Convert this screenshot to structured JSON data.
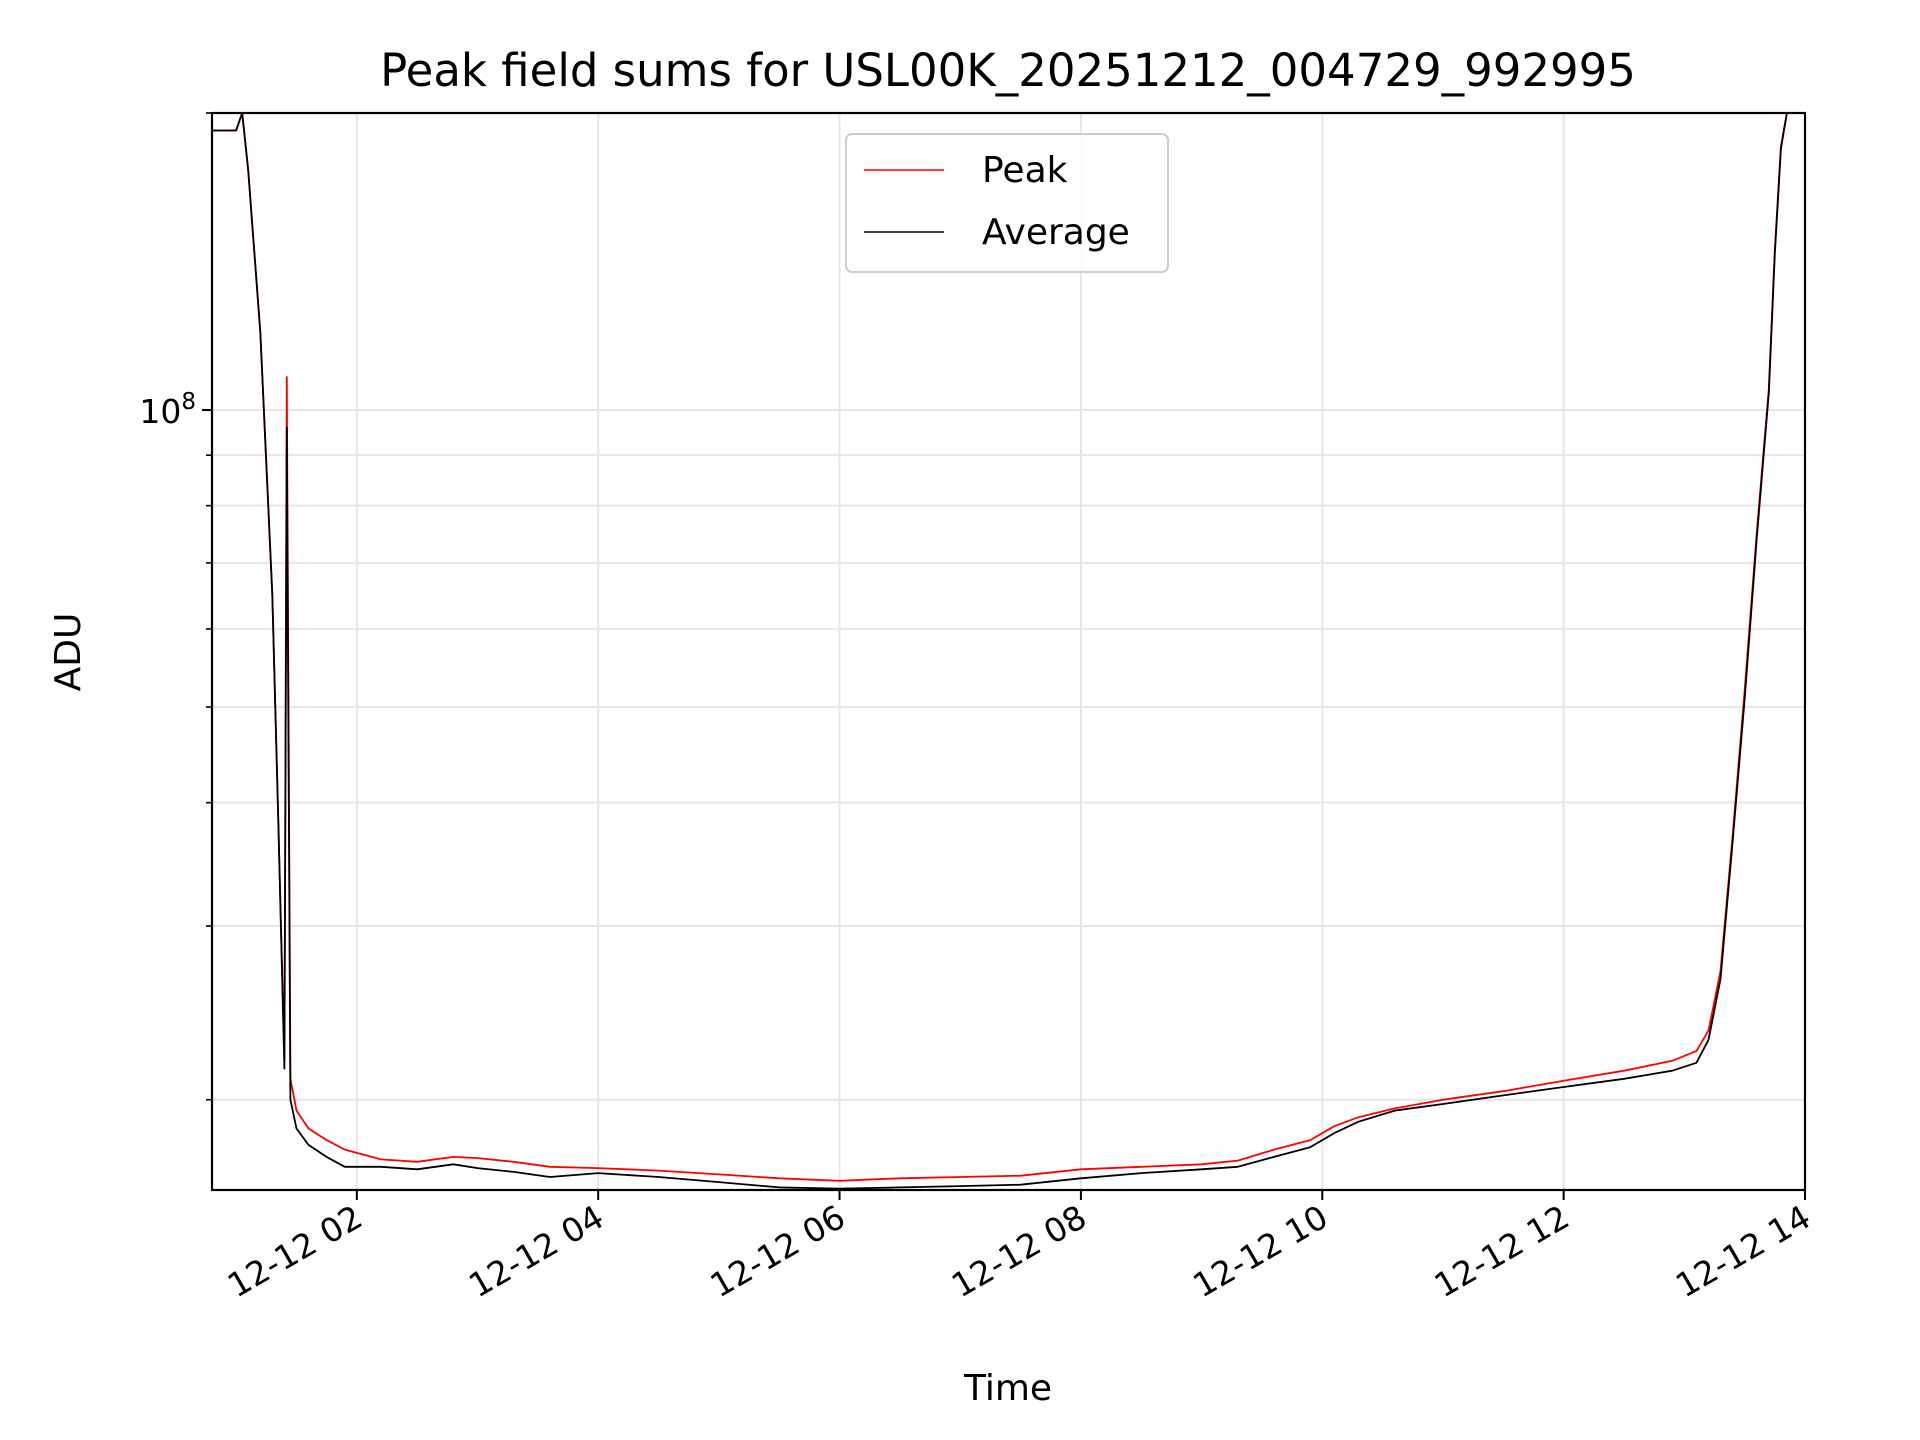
{
  "chart_data": {
    "type": "line",
    "title": "Peak field sums for USL00K_20251212_004729_992995",
    "xlabel": "Time",
    "ylabel": "ADU",
    "yscale": "log",
    "x_unit": "hours since 12-12 00:00",
    "xlim": [
      0.8,
      14.0
    ],
    "ylim": [
      16200000,
      200000000
    ],
    "x_ticks": [
      {
        "value": 2,
        "label": "12-12 02"
      },
      {
        "value": 4,
        "label": "12-12 04"
      },
      {
        "value": 6,
        "label": "12-12 06"
      },
      {
        "value": 8,
        "label": "12-12 08"
      },
      {
        "value": 10,
        "label": "12-12 10"
      },
      {
        "value": 12,
        "label": "12-12 12"
      },
      {
        "value": 14,
        "label": "12-12 14"
      }
    ],
    "y_major_ticks": [
      {
        "value": 100000000,
        "base": "10",
        "exp": "8"
      }
    ],
    "y_minor_ticks": [
      20000000,
      30000000,
      40000000,
      50000000,
      60000000,
      70000000,
      80000000,
      90000000,
      200000000
    ],
    "legend": {
      "location": "upper center",
      "entries": [
        {
          "name": "Peak",
          "color": "#ff0000"
        },
        {
          "name": "Average",
          "color": "#000000"
        }
      ]
    },
    "series": [
      {
        "name": "Peak",
        "color": "#ff0000",
        "x": [
          0.8,
          0.95,
          1.0,
          1.05,
          1.1,
          1.2,
          1.3,
          1.35,
          1.4,
          1.42,
          1.45,
          1.5,
          1.6,
          1.75,
          1.9,
          2.2,
          2.5,
          2.8,
          3.0,
          3.3,
          3.6,
          4.0,
          4.5,
          5.0,
          5.5,
          6.0,
          6.5,
          7.0,
          7.5,
          8.0,
          8.5,
          9.0,
          9.3,
          9.6,
          9.9,
          10.1,
          10.3,
          10.6,
          11.0,
          11.5,
          12.0,
          12.5,
          12.9,
          13.1,
          13.2,
          13.3,
          13.4,
          13.5,
          13.6,
          13.7,
          13.75,
          13.8,
          13.85
        ],
        "y": [
          192000000,
          192000000,
          192000000,
          200000000,
          175000000,
          120000000,
          65000000,
          38000000,
          22000000,
          108000000,
          21000000,
          19500000,
          18700000,
          18200000,
          17800000,
          17400000,
          17300000,
          17500000,
          17450000,
          17300000,
          17100000,
          17050000,
          16950000,
          16800000,
          16650000,
          16550000,
          16650000,
          16700000,
          16750000,
          17000000,
          17100000,
          17200000,
          17350000,
          17800000,
          18200000,
          18800000,
          19200000,
          19600000,
          20000000,
          20400000,
          20900000,
          21400000,
          21900000,
          22400000,
          23500000,
          27000000,
          37000000,
          52000000,
          75000000,
          105000000,
          145000000,
          185000000,
          200000000
        ]
      },
      {
        "name": "Average",
        "color": "#000000",
        "x": [
          0.8,
          0.95,
          1.0,
          1.05,
          1.1,
          1.2,
          1.3,
          1.35,
          1.4,
          1.42,
          1.45,
          1.5,
          1.6,
          1.75,
          1.9,
          2.2,
          2.5,
          2.8,
          3.0,
          3.3,
          3.6,
          4.0,
          4.5,
          5.0,
          5.5,
          6.0,
          6.5,
          7.0,
          7.5,
          8.0,
          8.5,
          9.0,
          9.3,
          9.6,
          9.9,
          10.1,
          10.3,
          10.6,
          11.0,
          11.5,
          12.0,
          12.5,
          12.9,
          13.1,
          13.2,
          13.3,
          13.4,
          13.5,
          13.6,
          13.7,
          13.75,
          13.8,
          13.85
        ],
        "y": [
          192000000,
          192000000,
          192000000,
          200000000,
          175000000,
          120000000,
          65000000,
          38000000,
          21500000,
          96000000,
          20000000,
          18700000,
          18000000,
          17500000,
          17100000,
          17100000,
          17000000,
          17200000,
          17050000,
          16900000,
          16700000,
          16850000,
          16700000,
          16500000,
          16300000,
          16250000,
          16300000,
          16350000,
          16400000,
          16650000,
          16850000,
          17000000,
          17100000,
          17500000,
          17900000,
          18500000,
          19000000,
          19500000,
          19800000,
          20200000,
          20600000,
          21000000,
          21400000,
          21800000,
          23000000,
          26500000,
          36500000,
          51000000,
          74000000,
          104000000,
          144000000,
          184000000,
          200000000
        ]
      }
    ]
  }
}
